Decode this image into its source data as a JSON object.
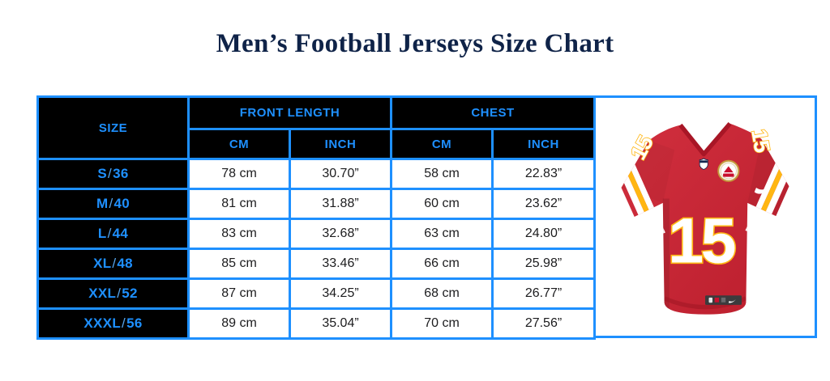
{
  "title": "Men’s Football Jerseys Size Chart",
  "table": {
    "size_header": "SIZE",
    "front_length_header": "FRONT LENGTH",
    "chest_header": "CHEST",
    "cm_header": "CM",
    "inch_header": "INCH",
    "rows": [
      {
        "size": "S/36",
        "front_cm": "78 cm",
        "front_inch": "30.70”",
        "chest_cm": "58 cm",
        "chest_inch": "22.83”"
      },
      {
        "size": "M/40",
        "front_cm": "81 cm",
        "front_inch": "31.88”",
        "chest_cm": "60 cm",
        "chest_inch": "23.62”"
      },
      {
        "size": "L/44",
        "front_cm": "83 cm",
        "front_inch": "32.68”",
        "chest_cm": "63 cm",
        "chest_inch": "24.80”"
      },
      {
        "size": "XL/48",
        "front_cm": "85 cm",
        "front_inch": "33.46”",
        "chest_cm": "66 cm",
        "chest_inch": "25.98”"
      },
      {
        "size": "XXL/52",
        "front_cm": "87 cm",
        "front_inch": "34.25”",
        "chest_cm": "68 cm",
        "chest_inch": "26.77”"
      },
      {
        "size": "XXXL/56",
        "front_cm": "89 cm",
        "front_inch": "35.04”",
        "chest_cm": "70 cm",
        "chest_inch": "27.56”"
      }
    ]
  },
  "jersey": {
    "number": "15",
    "body_color": "#c42433",
    "trim_gold": "#ffb612",
    "trim_white": "#ffffff"
  },
  "colors": {
    "accent_blue": "#1e90ff",
    "header_background": "#000000",
    "title_navy": "#0f2348"
  },
  "chart_data": {
    "type": "table",
    "title": "Men’s Football Jerseys Size Chart",
    "columns": [
      "Size",
      "Front Length (cm)",
      "Front Length (inch)",
      "Chest (cm)",
      "Chest (inch)"
    ],
    "rows": [
      [
        "S/36",
        78,
        30.7,
        58,
        22.83
      ],
      [
        "M/40",
        81,
        31.88,
        60,
        23.62
      ],
      [
        "L/44",
        83,
        32.68,
        63,
        24.8
      ],
      [
        "XL/48",
        85,
        33.46,
        66,
        25.98
      ],
      [
        "XXL/52",
        87,
        34.25,
        68,
        26.77
      ],
      [
        "XXXL/56",
        89,
        35.04,
        70,
        27.56
      ]
    ]
  }
}
